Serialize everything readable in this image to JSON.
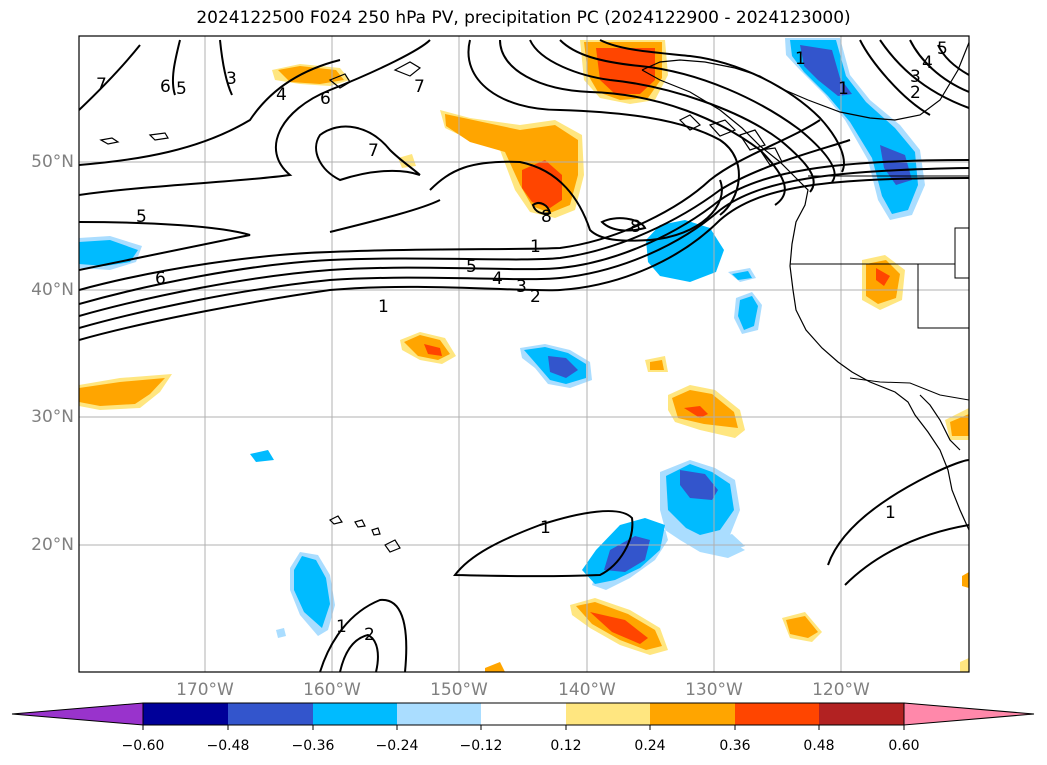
{
  "title": "2024122500 F024 250 hPa PV, precipitation PC (2024122900 - 2024123000)",
  "map": {
    "lat_labels": [
      "50°N",
      "40°N",
      "30°N",
      "20°N"
    ],
    "lon_labels": [
      "170°W",
      "160°W",
      "150°W",
      "140°W",
      "130°W",
      "120°W"
    ],
    "lon_range": [
      -180,
      -110
    ],
    "lat_range": [
      10,
      60
    ]
  },
  "pv_contour_labels": [
    "7",
    "6",
    "5",
    "3",
    "4",
    "6",
    "7",
    "1",
    "5",
    "6",
    "7",
    "5",
    "4",
    "3",
    "2",
    "1",
    "1",
    "1",
    "1",
    "2",
    "5",
    "4",
    "3",
    "2",
    "1",
    "8",
    "8"
  ],
  "colorbar": {
    "ticks": [
      "−0.60",
      "−0.48",
      "−0.36",
      "−0.24",
      "−0.12",
      "0.12",
      "0.24",
      "0.36",
      "0.48",
      "0.60"
    ],
    "colors": [
      "#9933cc",
      "#000099",
      "#3355cc",
      "#00bbff",
      "#aaddff",
      "#ffffff",
      "#ffe680",
      "#ffa500",
      "#ff4500",
      "#b22222",
      "#ff88aa"
    ]
  }
}
